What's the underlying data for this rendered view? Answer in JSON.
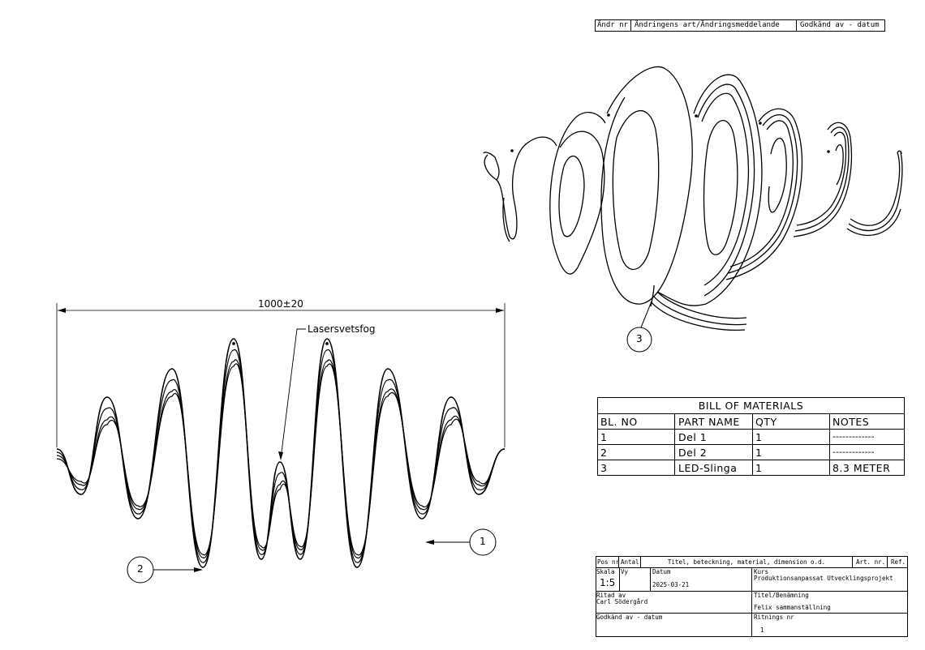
{
  "revision_block": {
    "col_andr_nr": "Ändr nr",
    "col_art": "Ändringens art/Ändringsmeddelande",
    "col_godkand": "Godkänd av  -  datum"
  },
  "front_view": {
    "dimension": "1000±20",
    "weld_note": "Lasersvetsfog"
  },
  "balloons": {
    "b1": "1",
    "b2": "2",
    "b3": "3"
  },
  "bom": {
    "title": "BILL OF MATERIALS",
    "headers": [
      "BL. NO",
      "PART NAME",
      "QTY",
      "NOTES"
    ],
    "rows": [
      [
        "1",
        "Del 1",
        "1",
        "-------------"
      ],
      [
        "2",
        "Del 2",
        "1",
        "-------------"
      ],
      [
        "3",
        "LED-Slinga",
        "1",
        "8.3 METER"
      ]
    ]
  },
  "title_block": {
    "pos_nr": "Pos nr",
    "antal": "Antal",
    "title_desc": "Titel, beteckning, material, dimension o.d.",
    "art_nr": "Art. nr.",
    "ref": "Ref.",
    "skala_label": "Skala",
    "vy_label": "Vy",
    "skala_value": "1:5",
    "datum_label": "Datum",
    "datum_value": "2025-03-21",
    "kurs_label": "Kurs",
    "kurs_value": "Produktionsanpassat Utvecklingsprojekt",
    "ritad_label": "Ritad av",
    "ritad_value": "Carl Södergård",
    "titel_label": "Titel/Benämning",
    "titel_value": "Felix sammanställning",
    "godkand_label": "Godkänd av - datum",
    "ritnings_label": "Ritnings nr",
    "ritnings_value": "1"
  }
}
